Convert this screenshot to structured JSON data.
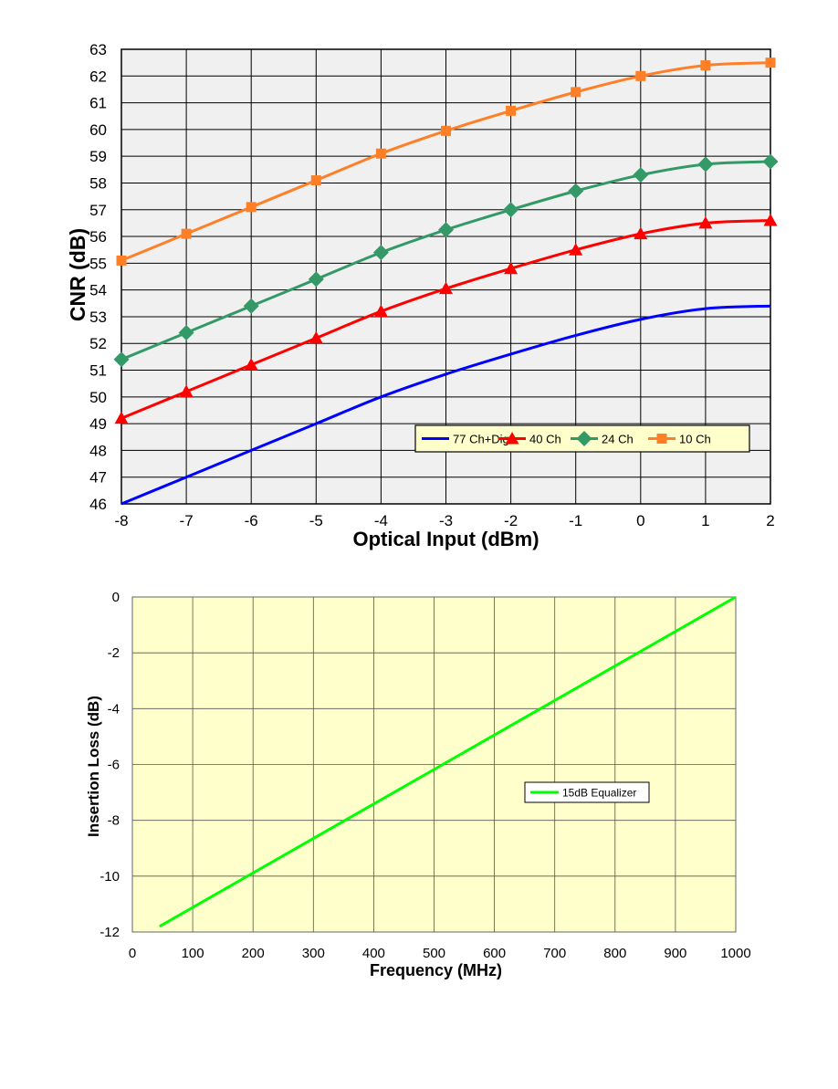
{
  "chart_data": [
    {
      "type": "line",
      "title": "",
      "xlabel": "Optical Input (dBm)",
      "ylabel": "CNR (dB)",
      "xlim": [
        -8,
        2
      ],
      "ylim": [
        46,
        63
      ],
      "xticks": [
        -8,
        -7,
        -6,
        -5,
        -4,
        -3,
        -2,
        -1,
        0,
        1,
        2
      ],
      "yticks": [
        46,
        47,
        48,
        49,
        50,
        51,
        52,
        53,
        54,
        55,
        56,
        57,
        58,
        59,
        60,
        61,
        62,
        63
      ],
      "grid": true,
      "plot_background": "#f0f0f0",
      "legend_position": "bottom-right",
      "x": [
        -8,
        -7,
        -6,
        -5,
        -4,
        -3,
        -2,
        -1,
        0,
        1,
        2
      ],
      "series": [
        {
          "name": "77 Ch+Dig",
          "color": "#0000ff",
          "marker": "none",
          "values": [
            46.0,
            47.0,
            48.0,
            49.0,
            50.0,
            50.85,
            51.6,
            52.3,
            52.9,
            53.3,
            53.4
          ]
        },
        {
          "name": "40 Ch",
          "color": "#ff0000",
          "marker": "triangle",
          "values": [
            49.2,
            50.2,
            51.2,
            52.2,
            53.2,
            54.05,
            54.8,
            55.5,
            56.1,
            56.5,
            56.6
          ]
        },
        {
          "name": "24 Ch",
          "color": "#339966",
          "marker": "diamond",
          "values": [
            51.4,
            52.4,
            53.4,
            54.4,
            55.4,
            56.25,
            57.0,
            57.7,
            58.3,
            58.7,
            58.8
          ]
        },
        {
          "name": "10 Ch",
          "color": "#ff7f27",
          "marker": "square",
          "values": [
            55.1,
            56.1,
            57.1,
            58.1,
            59.1,
            59.95,
            60.7,
            61.4,
            62.0,
            62.4,
            62.5
          ]
        }
      ]
    },
    {
      "type": "line",
      "title": "",
      "xlabel": "Frequency (MHz)",
      "ylabel": "Insertion Loss (dB)",
      "xlim": [
        0,
        1000
      ],
      "ylim": [
        -12,
        0
      ],
      "xticks": [
        0,
        100,
        200,
        300,
        400,
        500,
        600,
        700,
        800,
        900,
        1000
      ],
      "yticks": [
        0,
        -2,
        -4,
        -6,
        -8,
        -10,
        -12
      ],
      "grid": true,
      "plot_background": "#ffffcc",
      "legend_position": "center-right",
      "series": [
        {
          "name": "15dB Equalizer",
          "color": "#00ff00",
          "marker": "none",
          "x": [
            45,
            1000
          ],
          "values": [
            -11.8,
            0
          ]
        }
      ]
    }
  ]
}
